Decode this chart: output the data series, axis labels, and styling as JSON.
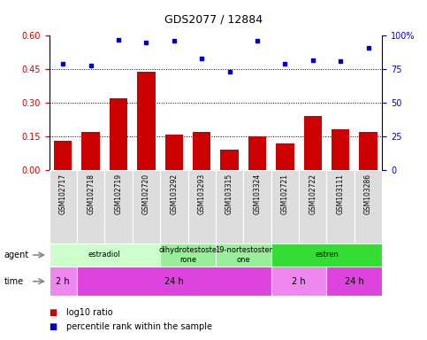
{
  "title": "GDS2077 / 12884",
  "samples": [
    "GSM102717",
    "GSM102718",
    "GSM102719",
    "GSM102720",
    "GSM103292",
    "GSM103293",
    "GSM103315",
    "GSM103324",
    "GSM102721",
    "GSM102722",
    "GSM103111",
    "GSM103286"
  ],
  "log10_ratio": [
    0.13,
    0.17,
    0.32,
    0.44,
    0.16,
    0.17,
    0.09,
    0.15,
    0.12,
    0.24,
    0.18,
    0.17
  ],
  "percentile_rank": [
    79,
    78,
    97,
    95,
    96,
    83,
    73,
    96,
    79,
    82,
    81,
    91
  ],
  "bar_color": "#cc0000",
  "dot_color": "#0000cc",
  "ylim_left": [
    0,
    0.6
  ],
  "ylim_right": [
    0,
    100
  ],
  "yticks_left": [
    0,
    0.15,
    0.3,
    0.45,
    0.6
  ],
  "yticks_right": [
    0,
    25,
    50,
    75,
    100
  ],
  "agent_labels": [
    {
      "label": "estradiol",
      "start": 0,
      "end": 4,
      "color": "#ccffcc"
    },
    {
      "label": "dihydrotestoste\nrone",
      "start": 4,
      "end": 6,
      "color": "#99ee99"
    },
    {
      "label": "19-nortestoster\none",
      "start": 6,
      "end": 8,
      "color": "#99ee99"
    },
    {
      "label": "estren",
      "start": 8,
      "end": 12,
      "color": "#33dd33"
    }
  ],
  "time_labels": [
    {
      "label": "2 h",
      "start": 0,
      "end": 1,
      "color": "#ee88ee"
    },
    {
      "label": "24 h",
      "start": 1,
      "end": 8,
      "color": "#dd44dd"
    },
    {
      "label": "2 h",
      "start": 8,
      "end": 10,
      "color": "#ee88ee"
    },
    {
      "label": "24 h",
      "start": 10,
      "end": 12,
      "color": "#dd44dd"
    }
  ],
  "legend_red_label": "log10 ratio",
  "legend_blue_label": "percentile rank within the sample",
  "agent_row_label": "agent",
  "time_row_label": "time",
  "background_color": "#ffffff"
}
